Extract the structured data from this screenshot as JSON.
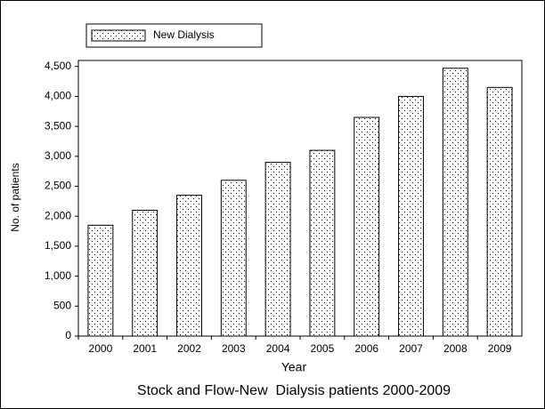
{
  "chart_data": {
    "type": "bar",
    "title": "Stock and Flow-New  Dialysis patients 2000-2009",
    "x_label": "Year",
    "y_label": "No. of patients",
    "categories": [
      "2000",
      "2001",
      "2002",
      "2003",
      "2004",
      "2005",
      "2006",
      "2007",
      "2008",
      "2009"
    ],
    "series": [
      {
        "name": "New Dialysis",
        "color": "#000000",
        "values": [
          1850,
          2100,
          2350,
          2600,
          2900,
          3100,
          3650,
          4000,
          4470,
          4150
        ]
      }
    ],
    "ylim": [
      0,
      4600
    ],
    "yticks": [
      0,
      500,
      {
        "value": 1000,
        "label": "1,000"
      },
      {
        "value": 1500,
        "label": "1,500"
      },
      {
        "value": 2000,
        "label": "2,000"
      },
      {
        "value": 2500,
        "label": "2,500"
      },
      {
        "value": 3000,
        "label": "3,000"
      },
      {
        "value": 3500,
        "label": "3,500"
      },
      {
        "value": 4000,
        "label": "4,000"
      },
      {
        "value": 4500,
        "label": "4,500"
      }
    ],
    "grid": false,
    "legend": "top-left"
  }
}
